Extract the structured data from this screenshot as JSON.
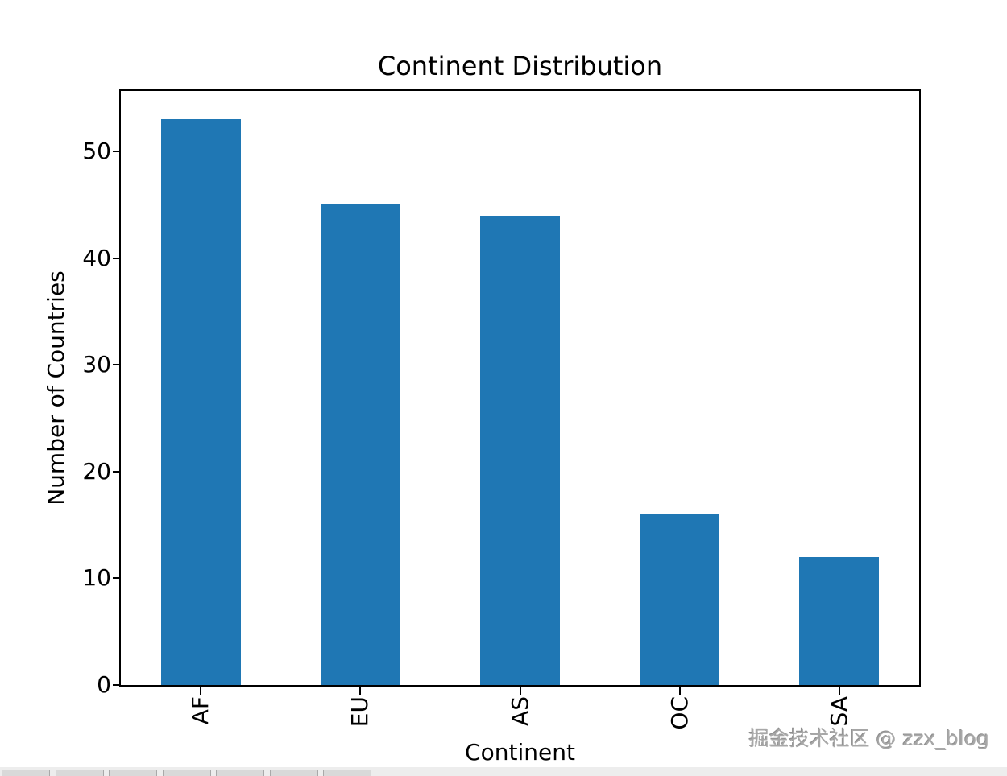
{
  "chart_data": {
    "type": "bar",
    "title": "Continent Distribution",
    "xlabel": "Continent",
    "ylabel": "Number of Countries",
    "categories": [
      "AF",
      "EU",
      "AS",
      "OC",
      "SA"
    ],
    "values": [
      53,
      45,
      44,
      16,
      12
    ],
    "yticks": [
      0,
      10,
      20,
      30,
      40,
      50
    ],
    "ylim": [
      0,
      55.65
    ],
    "bar_color": "#1f77b4",
    "axis_color": "#000000",
    "xtick_rotation": 90,
    "grid": false,
    "legend": false
  },
  "watermark": {
    "text": "掘金技术社区 @ zzx_blog"
  },
  "bottom_toolbar": {
    "cells": 7
  }
}
